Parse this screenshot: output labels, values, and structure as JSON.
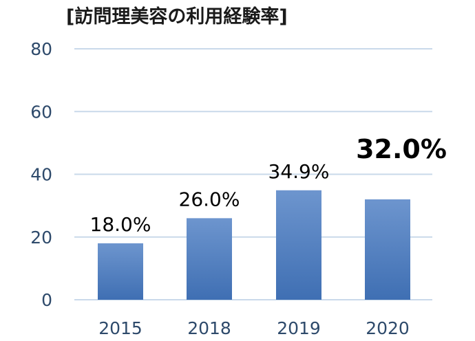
{
  "chart_data": {
    "type": "bar",
    "title": "[訪問理美容の利用経験率]",
    "categories": [
      "2015",
      "2018",
      "2019",
      "2020"
    ],
    "values": [
      18.0,
      26.0,
      34.9,
      32.0
    ],
    "data_labels": [
      "18.0%",
      "26.0%",
      "34.9%",
      "32.0%"
    ],
    "emphasized_index": 3,
    "ylim": [
      0,
      80
    ],
    "yticks": [
      0,
      20,
      40,
      60,
      80
    ],
    "xlabel": "",
    "ylabel": "",
    "grid": true,
    "legend": "none",
    "colors": {
      "bar_top": "#6d95ce",
      "bar_bottom": "#3f6fb3",
      "grid": "#c9d9ea",
      "tick_text": "#2e4a6b"
    }
  }
}
